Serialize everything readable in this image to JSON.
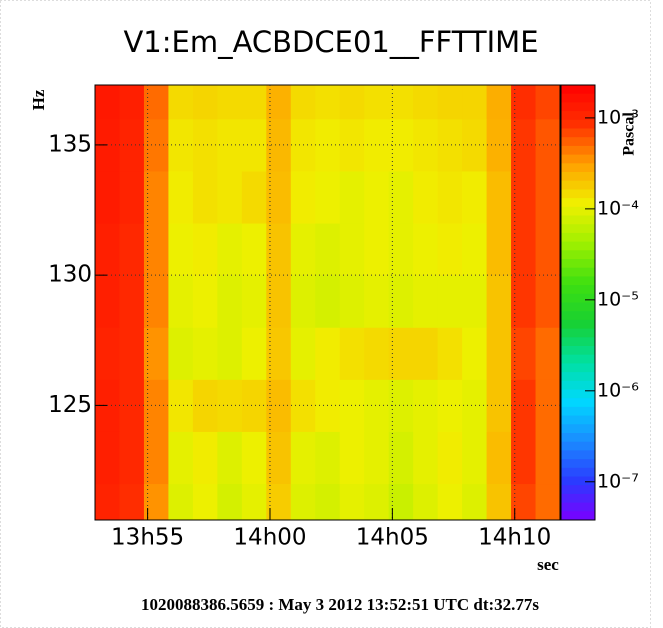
{
  "chart_data": {
    "type": "heatmap",
    "title": "V1:Em_ACBDCE01__FFTTIME",
    "xlabel": "sec",
    "ylabel": "Hz",
    "zlabel": "Pascal",
    "footer": "1020088386.5659 : May  3 2012 13:52:51 UTC dt:32.77s",
    "xlim": [
      0,
      1140
    ],
    "xticks": [
      {
        "value": 129,
        "label": "13h55"
      },
      {
        "value": 429,
        "label": "14h00"
      },
      {
        "value": 729,
        "label": "14h05"
      },
      {
        "value": 1029,
        "label": "14h10"
      }
    ],
    "ylim": [
      120.6,
      137.3
    ],
    "yticks": [
      125,
      130,
      135
    ],
    "zlim": [
      3.8e-08,
      0.0023
    ],
    "zlog": true,
    "zticks": [
      {
        "value": 0.001,
        "label": "10⁻³"
      },
      {
        "value": 0.0001,
        "label": "10⁻⁴"
      },
      {
        "value": 1e-05,
        "label": "10⁻⁵"
      },
      {
        "value": 1e-06,
        "label": "10⁻⁶"
      },
      {
        "value": 1e-07,
        "label": "10⁻⁷"
      }
    ],
    "grid": true,
    "colormap": [
      "#7a00ff",
      "#2a3cff",
      "#1a8cff",
      "#00d8ff",
      "#00e0a0",
      "#18d030",
      "#40e010",
      "#a0f000",
      "#f0f000",
      "#ffa000",
      "#ff3000",
      "#ff0000"
    ],
    "xbins": [
      0,
      60,
      120,
      180,
      240,
      300,
      360,
      420,
      480,
      540,
      600,
      660,
      720,
      780,
      840,
      900,
      960,
      1020,
      1080,
      1140
    ],
    "ybins": [
      120.6,
      122,
      124,
      126,
      128,
      130,
      132,
      134,
      136,
      137.3
    ],
    "z": [
      [
        0.0011,
        0.0009,
        0.00035,
        9e-05,
        0.00011,
        8e-05,
        0.0001,
        0.00018,
        9e-05,
        8e-05,
        0.0001,
        9e-05,
        7e-05,
        9e-05,
        0.00011,
        9e-05,
        0.0002,
        0.0007,
        0.0005
      ],
      [
        0.0012,
        0.001,
        0.0004,
        0.0001,
        0.00012,
        9e-05,
        0.00011,
        0.0002,
        0.0001,
        9e-05,
        0.00011,
        0.0001,
        8e-05,
        0.0001,
        0.00012,
        0.0001,
        0.00022,
        0.0008,
        0.0005
      ],
      [
        0.0012,
        0.001,
        0.0004,
        0.00013,
        0.00016,
        0.00015,
        0.00016,
        0.00022,
        0.00014,
        0.00012,
        0.00011,
        0.0001,
        9e-05,
        0.0001,
        0.00011,
        0.0001,
        0.0002,
        0.0008,
        0.0005
      ],
      [
        0.0011,
        0.001,
        0.00035,
        9e-05,
        0.0001,
        9e-05,
        0.00011,
        0.00019,
        0.0001,
        0.00012,
        0.00014,
        0.00015,
        0.00016,
        0.00016,
        0.00014,
        0.00011,
        0.0002,
        0.0007,
        0.0005
      ],
      [
        0.0012,
        0.001,
        0.0004,
        0.0001,
        0.00011,
        9e-05,
        0.0001,
        0.0002,
        9e-05,
        8e-05,
        9e-05,
        0.0001,
        9e-05,
        0.0001,
        0.0001,
        0.0001,
        0.0002,
        0.0008,
        0.0006
      ],
      [
        0.0012,
        0.001,
        0.0004,
        0.00011,
        0.00012,
        0.0001,
        0.00011,
        0.0002,
        0.0001,
        9e-05,
        0.0001,
        0.00011,
        0.0001,
        0.00011,
        0.00012,
        0.00011,
        0.00022,
        0.0008,
        0.0006
      ],
      [
        0.0013,
        0.0011,
        0.0004,
        0.00012,
        0.00014,
        0.00013,
        0.00015,
        0.00022,
        0.00012,
        0.00011,
        0.0001,
        0.00011,
        0.0001,
        0.00012,
        0.00013,
        0.00012,
        0.00022,
        0.0008,
        0.0006
      ],
      [
        0.0013,
        0.0011,
        0.00045,
        0.00013,
        0.00014,
        0.00013,
        0.00013,
        0.00023,
        0.00013,
        0.00012,
        0.00013,
        0.00012,
        0.00012,
        0.00013,
        0.00014,
        0.00015,
        0.00025,
        0.0008,
        0.0006
      ],
      [
        0.0014,
        0.0012,
        0.0005,
        0.00015,
        0.00016,
        0.00015,
        0.00015,
        0.00025,
        0.00015,
        0.00014,
        0.00015,
        0.00014,
        0.00014,
        0.00015,
        0.00016,
        0.00016,
        0.00026,
        0.0009,
        0.0007
      ]
    ]
  }
}
